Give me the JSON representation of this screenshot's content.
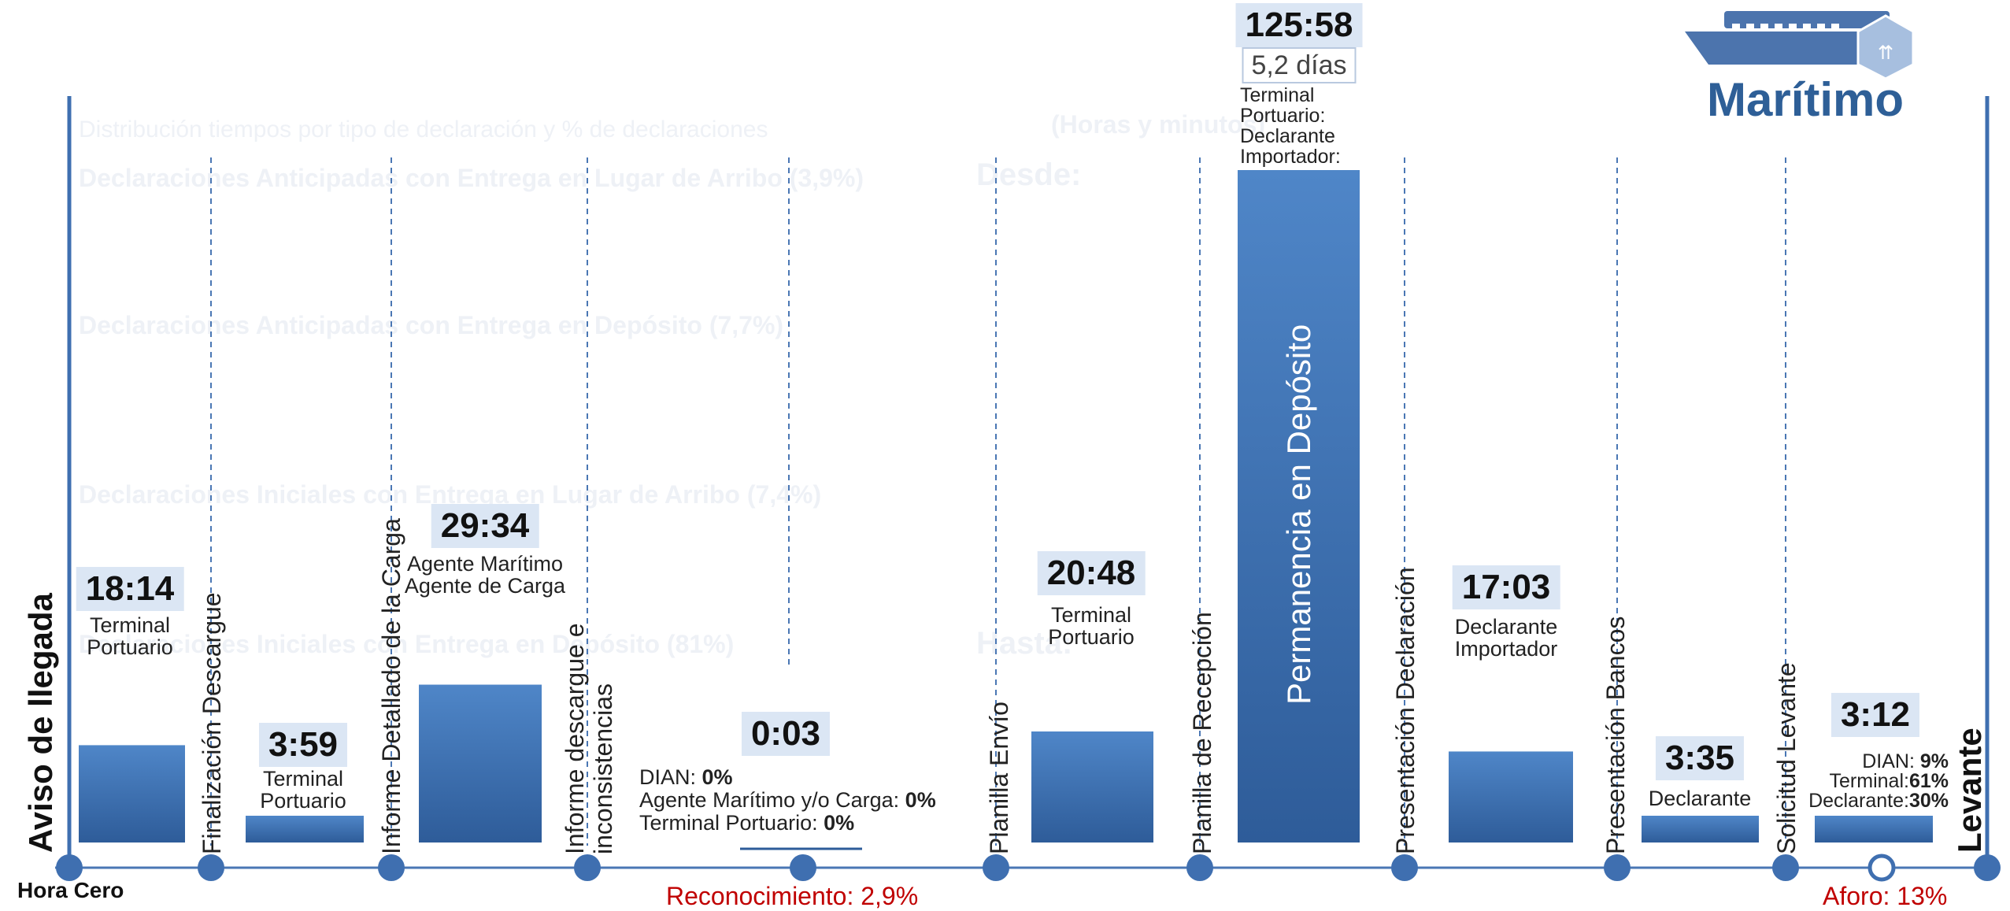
{
  "mode_title": "Marítimo",
  "chart_data": {
    "type": "bar",
    "unit": "horas:minutos",
    "categories": [
      "Aviso de llegada",
      "Finalización Descargue",
      "Informe Detallado de la Carga",
      "Informe descargue e inconsistencias",
      "Planilla Envío",
      "Planilla de Recepción",
      "Presentación Declaración",
      "Presentación Bancos",
      "Solicitud Levante",
      "Levante"
    ],
    "bars": [
      {
        "label": "18:14",
        "hours": 18.23,
        "actor": [
          "Terminal",
          "Portuario"
        ]
      },
      {
        "label": "3:59",
        "hours": 3.98,
        "actor": [
          "Terminal",
          "Portuario"
        ]
      },
      {
        "label": "29:34",
        "hours": 29.57,
        "actor": [
          "Agente Marítimo",
          "Agente de Carga"
        ]
      },
      {
        "label": "0:03",
        "hours": 0.05,
        "actor": []
      },
      {
        "label": "20:48",
        "hours": 20.8,
        "actor": [
          "Terminal",
          "Portuario"
        ]
      },
      {
        "label": "125:58",
        "hours": 125.97,
        "sublabel": "5,2 días",
        "actor": [
          "Terminal",
          "Portuario:",
          "Declarante",
          "Importador:"
        ],
        "inside_label": "Permanencia en Depósito"
      },
      {
        "label": "17:03",
        "hours": 17.05,
        "actor": [
          "Declarante",
          "Importador"
        ]
      },
      {
        "label": "3:35",
        "hours": 3.58,
        "actor": [
          "Declarante"
        ]
      },
      {
        "label": "3:12",
        "hours": 3.2,
        "actor": []
      }
    ],
    "reconocimiento_breakdown": [
      {
        "name": "DIAN:",
        "value": "0%"
      },
      {
        "name": "Agente Marítimo y/o Carga:",
        "value": "0%"
      },
      {
        "name": "Terminal Portuario:",
        "value": "0%"
      }
    ],
    "aforo_breakdown": [
      {
        "name": "DIAN:",
        "value": "9%"
      },
      {
        "name": "Terminal:",
        "value": "61%"
      },
      {
        "name": "Declarante:",
        "value": "30%"
      }
    ],
    "start_label": "Hora Cero",
    "reconocimiento": "Reconocimiento: 2,9%",
    "aforo": "Aforo: 13%"
  },
  "background_text": {
    "l1": "Distribución tiempos por tipo de declaración y % de declaraciones",
    "l2": "Declaraciones Anticipadas con Entrega en Lugar de Arribo (3,9%)",
    "l3": "Declaraciones Anticipadas con Entrega en Depósito (7,7%)",
    "l4": "Declaraciones Iniciales con Entrega en Lugar de Arribo (7,4%)",
    "l5": "Declaraciones Iniciales con Entrega en Depósito (81%)",
    "r1": "Desde:",
    "r2": "Hasta:",
    "r3": "(Horas y minutos)"
  },
  "colors": {
    "bar_top": "#4f86c8",
    "bar_bottom": "#2e5c99",
    "axis": "#4a77b4",
    "red": "#c00000",
    "ship": "#4c74ad"
  }
}
